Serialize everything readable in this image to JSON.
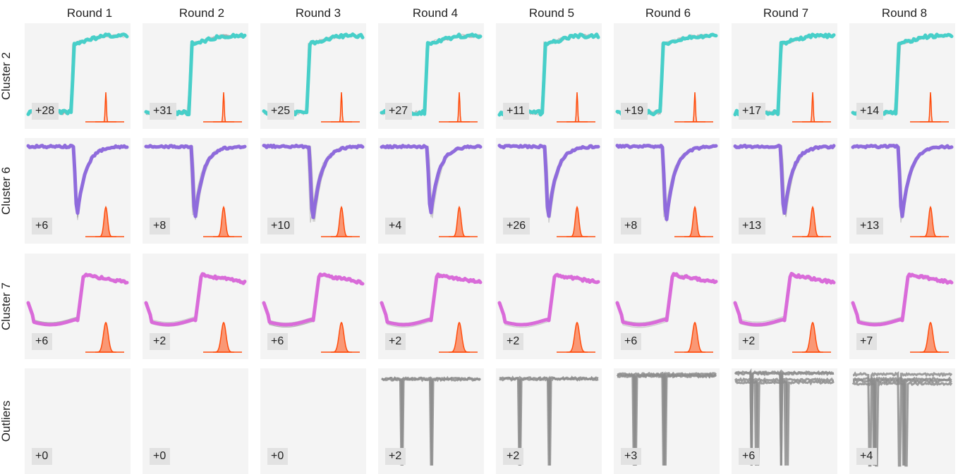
{
  "chart_data": {
    "type": "small-multiples-line",
    "columns": [
      "Round 1",
      "Round 2",
      "Round 3",
      "Round 4",
      "Round 5",
      "Round 6",
      "Round 7",
      "Round 8"
    ],
    "rows": [
      {
        "label": "Cluster 2",
        "shape": "step-up",
        "color": "#47cfc9",
        "counts": [
          "+28",
          "+31",
          "+25",
          "+27",
          "+11",
          "+19",
          "+17",
          "+14"
        ],
        "step_at": [
          0.46,
          0.46,
          0.46,
          0.46,
          0.46,
          0.46,
          0.46,
          0.46
        ]
      },
      {
        "label": "Cluster 6",
        "shape": "dip",
        "color": "#8f6bdc",
        "counts": [
          "+6",
          "+8",
          "+10",
          "+4",
          "+26",
          "+8",
          "+13",
          "+13"
        ],
        "dip_at": [
          0.46,
          0.46,
          0.46,
          0.46,
          0.46,
          0.46,
          0.46,
          0.46
        ]
      },
      {
        "label": "Cluster 7",
        "shape": "valley-rise",
        "color": "#d96bd9",
        "counts": [
          "+6",
          "+2",
          "+6",
          "+2",
          "+2",
          "+6",
          "+2",
          "+7"
        ]
      },
      {
        "label": "Outliers",
        "shape": "outlier",
        "color": "#8c8c8c",
        "counts": [
          "+0",
          "+0",
          "+0",
          "+2",
          "+2",
          "+3",
          "+6",
          "+4"
        ]
      }
    ],
    "inset_distribution_color": "#ff4d0d",
    "background_trace_color": "#9a9a9a",
    "grid": false,
    "legend": "none"
  }
}
